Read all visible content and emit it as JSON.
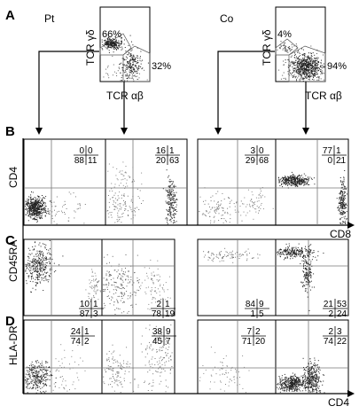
{
  "top": {
    "pt_label": "Pt",
    "co_label": "Co",
    "ylabel": "TCR γδ",
    "xlabel": "TCR αβ",
    "pt_gd_pct": "66%",
    "pt_ab_pct": "32%",
    "co_gd_pct": "4%",
    "co_ab_pct": "94%"
  },
  "panels": {
    "A": "A",
    "B": "B",
    "C": "C",
    "D": "D"
  },
  "axes": {
    "B_y": "CD4",
    "B_x": "CD8",
    "C_y": "CD45RA",
    "D_y": "HLA-DR",
    "D_x": "CD4"
  },
  "quadrants": {
    "B": [
      {
        "a": "0",
        "b": "0",
        "c": "88",
        "d": "11"
      },
      {
        "a": "16",
        "b": "1",
        "c": "20",
        "d": "63"
      },
      {
        "a": "3",
        "b": "0",
        "c": "29",
        "d": "68"
      },
      {
        "a": "77",
        "b": "1",
        "c": "0",
        "d": "21"
      }
    ],
    "C": [
      {
        "a": "10",
        "b": "1",
        "c": "87",
        "d": "3"
      },
      {
        "a": "2",
        "b": "1",
        "c": "78",
        "d": "19"
      },
      {
        "a": "84",
        "b": "9",
        "c": "1",
        "d": "5"
      },
      {
        "a": "21",
        "b": "53",
        "c": "2",
        "d": "24"
      }
    ],
    "D": [
      {
        "a": "24",
        "b": "1",
        "c": "74",
        "d": "2"
      },
      {
        "a": "38",
        "b": "9",
        "c": "45",
        "d": "7"
      },
      {
        "a": "7",
        "b": "2",
        "c": "71",
        "d": "20"
      },
      {
        "a": "2",
        "b": "3",
        "c": "74",
        "d": "22"
      }
    ]
  }
}
